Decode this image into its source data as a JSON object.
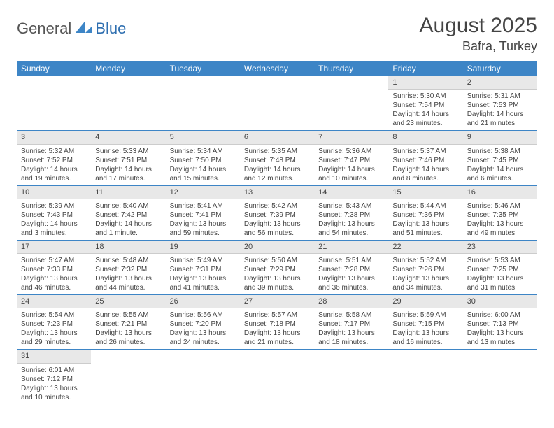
{
  "logo": {
    "part1": "General",
    "part2": "Blue"
  },
  "title": "August 2025",
  "location": "Bafra, Turkey",
  "weekdays": [
    "Sunday",
    "Monday",
    "Tuesday",
    "Wednesday",
    "Thursday",
    "Friday",
    "Saturday"
  ],
  "header_bg": "#3d85c6",
  "daynum_bg": "#e8e8e8",
  "weeks": [
    [
      null,
      null,
      null,
      null,
      null,
      {
        "n": "1",
        "sunrise": "5:30 AM",
        "sunset": "7:54 PM",
        "daylight": "14 hours and 23 minutes."
      },
      {
        "n": "2",
        "sunrise": "5:31 AM",
        "sunset": "7:53 PM",
        "daylight": "14 hours and 21 minutes."
      }
    ],
    [
      {
        "n": "3",
        "sunrise": "5:32 AM",
        "sunset": "7:52 PM",
        "daylight": "14 hours and 19 minutes."
      },
      {
        "n": "4",
        "sunrise": "5:33 AM",
        "sunset": "7:51 PM",
        "daylight": "14 hours and 17 minutes."
      },
      {
        "n": "5",
        "sunrise": "5:34 AM",
        "sunset": "7:50 PM",
        "daylight": "14 hours and 15 minutes."
      },
      {
        "n": "6",
        "sunrise": "5:35 AM",
        "sunset": "7:48 PM",
        "daylight": "14 hours and 12 minutes."
      },
      {
        "n": "7",
        "sunrise": "5:36 AM",
        "sunset": "7:47 PM",
        "daylight": "14 hours and 10 minutes."
      },
      {
        "n": "8",
        "sunrise": "5:37 AM",
        "sunset": "7:46 PM",
        "daylight": "14 hours and 8 minutes."
      },
      {
        "n": "9",
        "sunrise": "5:38 AM",
        "sunset": "7:45 PM",
        "daylight": "14 hours and 6 minutes."
      }
    ],
    [
      {
        "n": "10",
        "sunrise": "5:39 AM",
        "sunset": "7:43 PM",
        "daylight": "14 hours and 3 minutes."
      },
      {
        "n": "11",
        "sunrise": "5:40 AM",
        "sunset": "7:42 PM",
        "daylight": "14 hours and 1 minute."
      },
      {
        "n": "12",
        "sunrise": "5:41 AM",
        "sunset": "7:41 PM",
        "daylight": "13 hours and 59 minutes."
      },
      {
        "n": "13",
        "sunrise": "5:42 AM",
        "sunset": "7:39 PM",
        "daylight": "13 hours and 56 minutes."
      },
      {
        "n": "14",
        "sunrise": "5:43 AM",
        "sunset": "7:38 PM",
        "daylight": "13 hours and 54 minutes."
      },
      {
        "n": "15",
        "sunrise": "5:44 AM",
        "sunset": "7:36 PM",
        "daylight": "13 hours and 51 minutes."
      },
      {
        "n": "16",
        "sunrise": "5:46 AM",
        "sunset": "7:35 PM",
        "daylight": "13 hours and 49 minutes."
      }
    ],
    [
      {
        "n": "17",
        "sunrise": "5:47 AM",
        "sunset": "7:33 PM",
        "daylight": "13 hours and 46 minutes."
      },
      {
        "n": "18",
        "sunrise": "5:48 AM",
        "sunset": "7:32 PM",
        "daylight": "13 hours and 44 minutes."
      },
      {
        "n": "19",
        "sunrise": "5:49 AM",
        "sunset": "7:31 PM",
        "daylight": "13 hours and 41 minutes."
      },
      {
        "n": "20",
        "sunrise": "5:50 AM",
        "sunset": "7:29 PM",
        "daylight": "13 hours and 39 minutes."
      },
      {
        "n": "21",
        "sunrise": "5:51 AM",
        "sunset": "7:28 PM",
        "daylight": "13 hours and 36 minutes."
      },
      {
        "n": "22",
        "sunrise": "5:52 AM",
        "sunset": "7:26 PM",
        "daylight": "13 hours and 34 minutes."
      },
      {
        "n": "23",
        "sunrise": "5:53 AM",
        "sunset": "7:25 PM",
        "daylight": "13 hours and 31 minutes."
      }
    ],
    [
      {
        "n": "24",
        "sunrise": "5:54 AM",
        "sunset": "7:23 PM",
        "daylight": "13 hours and 29 minutes."
      },
      {
        "n": "25",
        "sunrise": "5:55 AM",
        "sunset": "7:21 PM",
        "daylight": "13 hours and 26 minutes."
      },
      {
        "n": "26",
        "sunrise": "5:56 AM",
        "sunset": "7:20 PM",
        "daylight": "13 hours and 24 minutes."
      },
      {
        "n": "27",
        "sunrise": "5:57 AM",
        "sunset": "7:18 PM",
        "daylight": "13 hours and 21 minutes."
      },
      {
        "n": "28",
        "sunrise": "5:58 AM",
        "sunset": "7:17 PM",
        "daylight": "13 hours and 18 minutes."
      },
      {
        "n": "29",
        "sunrise": "5:59 AM",
        "sunset": "7:15 PM",
        "daylight": "13 hours and 16 minutes."
      },
      {
        "n": "30",
        "sunrise": "6:00 AM",
        "sunset": "7:13 PM",
        "daylight": "13 hours and 13 minutes."
      }
    ],
    [
      {
        "n": "31",
        "sunrise": "6:01 AM",
        "sunset": "7:12 PM",
        "daylight": "13 hours and 10 minutes."
      },
      null,
      null,
      null,
      null,
      null,
      null
    ]
  ],
  "labels": {
    "sunrise": "Sunrise:",
    "sunset": "Sunset:",
    "daylight": "Daylight:"
  }
}
